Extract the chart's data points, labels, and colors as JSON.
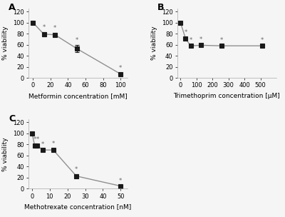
{
  "panel_A": {
    "x": [
      0,
      12.5,
      25,
      50,
      100
    ],
    "y": [
      100,
      79,
      78,
      53,
      7
    ],
    "yerr": [
      0,
      4,
      3,
      6,
      2
    ],
    "xlabel": "Metformin concentration [mM]",
    "ylabel": "% viability",
    "xlim": [
      -5,
      108
    ],
    "ylim": [
      0,
      125
    ],
    "xticks": [
      0,
      20,
      40,
      60,
      80,
      100
    ],
    "yticks": [
      0,
      20,
      40,
      60,
      80,
      100,
      120
    ],
    "label": "A"
  },
  "panel_B": {
    "x": [
      0,
      32,
      64,
      128,
      256,
      512
    ],
    "y": [
      100,
      71,
      58,
      59,
      58,
      58
    ],
    "yerr": [
      0,
      3,
      2,
      2,
      2,
      2
    ],
    "xlabel": "Trimethoprim concentration [µM]",
    "ylabel": "% viability",
    "xlim": [
      -20,
      600
    ],
    "ylim": [
      0,
      125
    ],
    "xticks": [
      0,
      100,
      200,
      300,
      400,
      500
    ],
    "yticks": [
      0,
      20,
      40,
      60,
      80,
      100,
      120
    ],
    "label": "B"
  },
  "panel_C": {
    "x": [
      0,
      1.5,
      3,
      6,
      12,
      25,
      50
    ],
    "y": [
      100,
      78,
      78,
      70,
      70,
      23,
      5
    ],
    "yerr": [
      0,
      3,
      3,
      2,
      3,
      3,
      1
    ],
    "xlabel": "Methotrexate concentration [nM]",
    "ylabel": "% viability",
    "xlim": [
      -2,
      54
    ],
    "ylim": [
      0,
      125
    ],
    "xticks": [
      0,
      10,
      20,
      30,
      40,
      50
    ],
    "yticks": [
      0,
      20,
      40,
      60,
      80,
      100,
      120
    ],
    "label": "C"
  },
  "line_color": "#909090",
  "marker_color": "#1a1a1a",
  "marker_style": "s",
  "marker_size": 4,
  "line_width": 1.0,
  "capsize": 2,
  "elinewidth": 0.8,
  "star_color": "#666666",
  "star_fontsize": 6,
  "label_fontsize": 9,
  "tick_fontsize": 6,
  "axis_label_fontsize": 6.5,
  "background_color": "#f5f5f5"
}
